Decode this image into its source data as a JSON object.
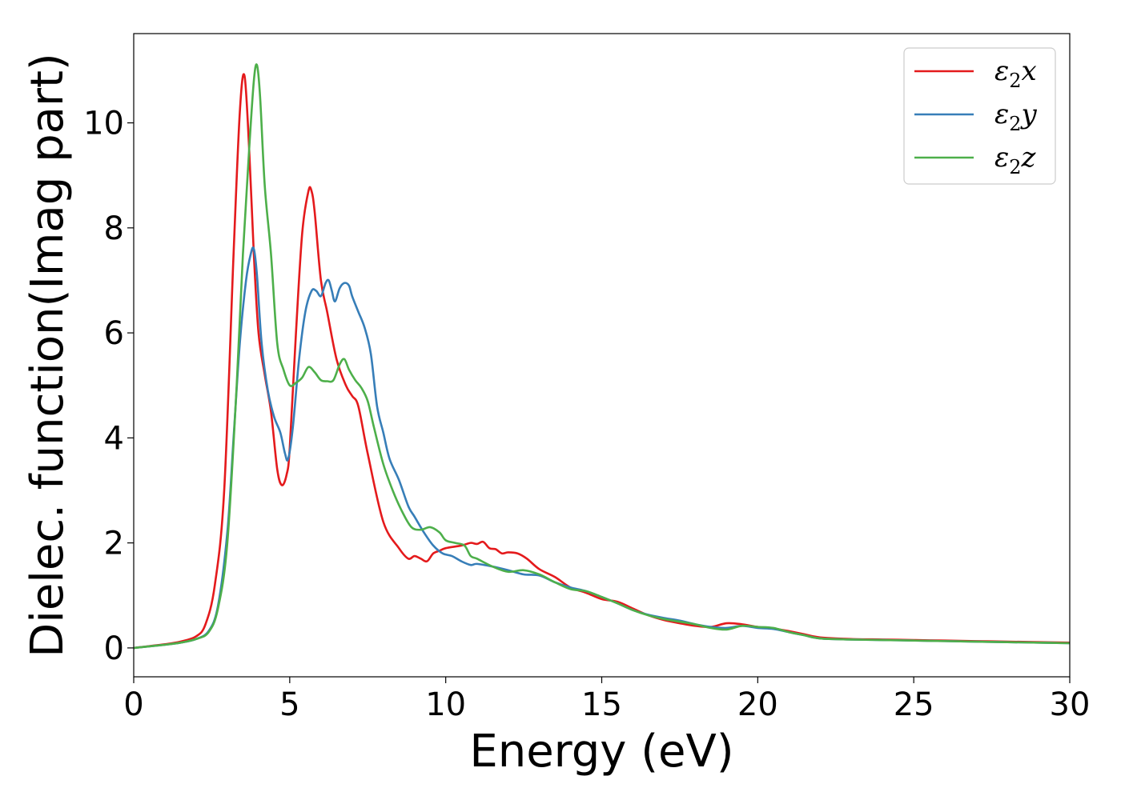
{
  "chart_data": {
    "type": "line",
    "title": "",
    "xlabel": "Energy (eV)",
    "ylabel": "Dielec. function(Imag part)",
    "xlim": [
      0,
      30
    ],
    "ylim": [
      -0.55,
      11.7
    ],
    "xticks": [
      0,
      5,
      10,
      15,
      20,
      25,
      30
    ],
    "xtick_labels": [
      "0",
      "5",
      "10",
      "15",
      "20",
      "25",
      "30"
    ],
    "yticks": [
      0,
      2,
      4,
      6,
      8,
      10
    ],
    "ytick_labels": [
      "0",
      "2",
      "4",
      "6",
      "8",
      "10"
    ],
    "grid": false,
    "legend_position": "top-right",
    "series": [
      {
        "name": "ε2x",
        "legend_base": "ε",
        "legend_sub": "2",
        "legend_suffix": "x",
        "color": "#e41a1c",
        "x": [
          0,
          1,
          1.5,
          2,
          2.3,
          2.6,
          2.9,
          3.2,
          3.4,
          3.55,
          3.7,
          3.85,
          4.0,
          4.2,
          4.4,
          4.6,
          4.75,
          4.9,
          5.0,
          5.2,
          5.4,
          5.6,
          5.7,
          5.8,
          6.0,
          6.2,
          6.5,
          6.8,
          7.0,
          7.2,
          7.5,
          8.0,
          8.5,
          8.8,
          9.0,
          9.2,
          9.4,
          9.6,
          9.8,
          10.0,
          10.5,
          10.8,
          11.0,
          11.2,
          11.4,
          11.6,
          11.8,
          12.0,
          12.3,
          12.6,
          13.0,
          13.5,
          14.0,
          14.5,
          15.0,
          15.5,
          16.0,
          16.5,
          17.0,
          17.5,
          18.0,
          18.5,
          19.0,
          19.5,
          20.0,
          20.5,
          21.0,
          21.5,
          22.0,
          23.0,
          24.0,
          25.0,
          26.0,
          27.0,
          28.0,
          29.0,
          30.0
        ],
        "y": [
          0,
          0.07,
          0.12,
          0.22,
          0.45,
          1.2,
          3.0,
          7.5,
          10.2,
          10.9,
          9.5,
          7.5,
          6.0,
          5.2,
          4.5,
          3.4,
          3.1,
          3.3,
          3.8,
          6.0,
          7.9,
          8.7,
          8.7,
          8.3,
          7.0,
          6.4,
          5.5,
          5.0,
          4.8,
          4.6,
          3.7,
          2.4,
          1.9,
          1.7,
          1.75,
          1.7,
          1.65,
          1.8,
          1.85,
          1.9,
          1.95,
          2.0,
          1.98,
          2.02,
          1.9,
          1.88,
          1.8,
          1.82,
          1.8,
          1.7,
          1.5,
          1.35,
          1.15,
          1.05,
          0.93,
          0.88,
          0.75,
          0.62,
          0.53,
          0.47,
          0.42,
          0.4,
          0.47,
          0.45,
          0.4,
          0.37,
          0.32,
          0.26,
          0.2,
          0.17,
          0.16,
          0.15,
          0.14,
          0.13,
          0.12,
          0.11,
          0.1
        ]
      },
      {
        "name": "ε2y",
        "legend_base": "ε",
        "legend_sub": "2",
        "legend_suffix": "y",
        "color": "#377eb8",
        "x": [
          0,
          1,
          1.5,
          2,
          2.4,
          2.7,
          3.0,
          3.2,
          3.4,
          3.6,
          3.75,
          3.85,
          3.95,
          4.1,
          4.3,
          4.5,
          4.7,
          4.85,
          4.95,
          5.1,
          5.3,
          5.5,
          5.7,
          5.85,
          6.0,
          6.15,
          6.25,
          6.35,
          6.45,
          6.6,
          6.75,
          6.9,
          7.0,
          7.2,
          7.4,
          7.6,
          7.8,
          8.0,
          8.2,
          8.5,
          8.8,
          9.0,
          9.3,
          9.6,
          9.9,
          10.2,
          10.5,
          10.8,
          11.0,
          11.5,
          12.0,
          12.5,
          13.0,
          13.5,
          14.0,
          14.5,
          15.0,
          15.5,
          16.0,
          16.5,
          17.0,
          17.5,
          18.0,
          18.5,
          19.0,
          19.5,
          20.0,
          20.5,
          21.0,
          21.5,
          22.0,
          23.0,
          24.0,
          25.0,
          26.0,
          27.0,
          28.0,
          29.0,
          30.0
        ],
        "y": [
          0,
          0.06,
          0.1,
          0.17,
          0.32,
          0.8,
          2.2,
          4.0,
          5.8,
          7.0,
          7.5,
          7.6,
          7.1,
          5.8,
          4.9,
          4.4,
          4.1,
          3.7,
          3.6,
          4.2,
          5.5,
          6.4,
          6.8,
          6.8,
          6.7,
          6.95,
          7.0,
          6.8,
          6.6,
          6.85,
          6.95,
          6.9,
          6.7,
          6.4,
          6.1,
          5.6,
          4.6,
          4.1,
          3.6,
          3.2,
          2.7,
          2.5,
          2.2,
          1.95,
          1.8,
          1.75,
          1.65,
          1.58,
          1.6,
          1.55,
          1.48,
          1.4,
          1.38,
          1.25,
          1.15,
          1.08,
          0.97,
          0.85,
          0.72,
          0.63,
          0.57,
          0.52,
          0.45,
          0.4,
          0.38,
          0.42,
          0.38,
          0.36,
          0.3,
          0.24,
          0.18,
          0.16,
          0.15,
          0.14,
          0.13,
          0.12,
          0.11,
          0.1,
          0.09
        ]
      },
      {
        "name": "ε2z",
        "legend_base": "ε",
        "legend_sub": "2",
        "legend_suffix": "z",
        "color": "#4daf4a",
        "x": [
          0,
          1,
          1.5,
          2,
          2.4,
          2.7,
          3.0,
          3.3,
          3.5,
          3.7,
          3.85,
          3.95,
          4.05,
          4.2,
          4.4,
          4.6,
          4.8,
          5.0,
          5.2,
          5.4,
          5.6,
          5.8,
          6.0,
          6.2,
          6.4,
          6.6,
          6.75,
          6.9,
          7.1,
          7.3,
          7.5,
          7.7,
          8.0,
          8.3,
          8.6,
          8.9,
          9.2,
          9.5,
          9.8,
          10.0,
          10.3,
          10.6,
          10.8,
          11.0,
          11.5,
          12.0,
          12.5,
          13.0,
          13.5,
          14.0,
          14.5,
          15.0,
          15.5,
          16.0,
          16.5,
          17.0,
          17.5,
          18.0,
          18.5,
          19.0,
          19.5,
          20.0,
          20.5,
          21.0,
          21.5,
          22.0,
          23.0,
          24.0,
          25.0,
          26.0,
          27.0,
          28.0,
          29.0,
          30.0
        ],
        "y": [
          0,
          0.06,
          0.1,
          0.17,
          0.3,
          0.75,
          2.0,
          5.0,
          7.5,
          9.5,
          10.8,
          11.1,
          10.5,
          8.8,
          7.5,
          5.8,
          5.3,
          5.0,
          5.05,
          5.15,
          5.35,
          5.25,
          5.1,
          5.08,
          5.1,
          5.4,
          5.5,
          5.3,
          5.1,
          4.95,
          4.7,
          4.2,
          3.5,
          3.0,
          2.6,
          2.3,
          2.25,
          2.3,
          2.2,
          2.05,
          2.0,
          1.95,
          1.75,
          1.7,
          1.55,
          1.45,
          1.48,
          1.4,
          1.25,
          1.12,
          1.08,
          0.97,
          0.85,
          0.72,
          0.62,
          0.55,
          0.5,
          0.45,
          0.38,
          0.35,
          0.42,
          0.4,
          0.38,
          0.3,
          0.24,
          0.18,
          0.16,
          0.15,
          0.14,
          0.13,
          0.12,
          0.11,
          0.1,
          0.09
        ]
      }
    ]
  }
}
